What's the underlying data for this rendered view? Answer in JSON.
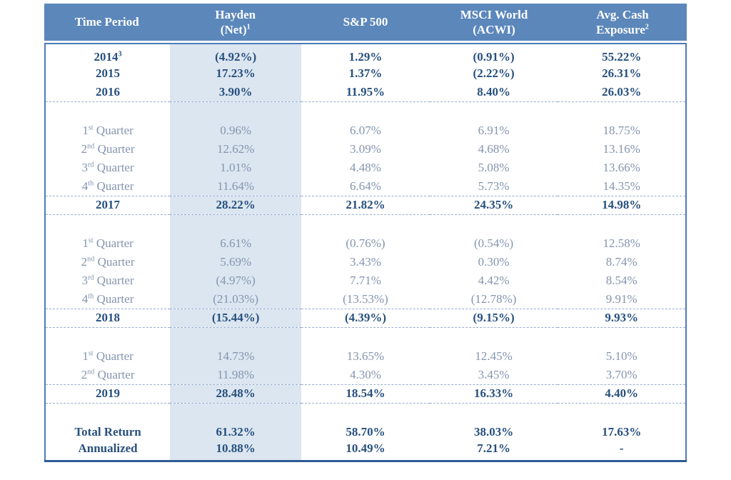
{
  "colors": {
    "header_bg": "#5B87BB",
    "header_text": "#FFFFFF",
    "strong_text": "#27507E",
    "muted_text": "#8495AF",
    "highlight_column_bg": "#DCE6F1",
    "outer_border": "#4B7CB8",
    "bottom_border": "#2F5B97",
    "dashed_rule": "#97AFCE"
  },
  "header": {
    "columns": [
      {
        "lines": [
          "Time Period"
        ],
        "sup": ""
      },
      {
        "lines": [
          "Hayden",
          "(Net)"
        ],
        "sup": "1"
      },
      {
        "lines": [
          "S&P 500"
        ],
        "sup": ""
      },
      {
        "lines": [
          "MSCI World",
          "(ACWI)"
        ],
        "sup": ""
      },
      {
        "lines": [
          "Avg. Cash",
          "Exposure"
        ],
        "sup": "2"
      }
    ]
  },
  "rows": [
    {
      "type": "year",
      "period": {
        "text": "2014",
        "sup": "3",
        "rest": ""
      },
      "values": [
        "(4.92%)",
        "1.29%",
        "(0.91%)",
        "55.22%"
      ],
      "dashed": false
    },
    {
      "type": "year",
      "period": {
        "text": "2015",
        "sup": "",
        "rest": ""
      },
      "values": [
        "17.23%",
        "1.37%",
        "(2.22%)",
        "26.31%"
      ],
      "dashed": false
    },
    {
      "type": "year",
      "period": {
        "text": "2016",
        "sup": "",
        "rest": ""
      },
      "values": [
        "3.90%",
        "11.95%",
        "8.40%",
        "26.03%"
      ],
      "dashed": true
    },
    {
      "type": "gap"
    },
    {
      "type": "quarter",
      "period": {
        "text": "1",
        "sup": "st",
        "rest": " Quarter"
      },
      "values": [
        "0.96%",
        "6.07%",
        "6.91%",
        "18.75%"
      ],
      "dashed": false
    },
    {
      "type": "quarter",
      "period": {
        "text": "2",
        "sup": "nd",
        "rest": " Quarter"
      },
      "values": [
        "12.62%",
        "3.09%",
        "4.68%",
        "13.16%"
      ],
      "dashed": false
    },
    {
      "type": "quarter",
      "period": {
        "text": "3",
        "sup": "rd",
        "rest": " Quarter"
      },
      "values": [
        "1.01%",
        "4.48%",
        "5.08%",
        "13.66%"
      ],
      "dashed": false
    },
    {
      "type": "quarter",
      "period": {
        "text": "4",
        "sup": "th",
        "rest": " Quarter"
      },
      "values": [
        "11.64%",
        "6.64%",
        "5.73%",
        "14.35%"
      ],
      "dashed": true
    },
    {
      "type": "year",
      "period": {
        "text": "2017",
        "sup": "",
        "rest": ""
      },
      "values": [
        "28.22%",
        "21.82%",
        "24.35%",
        "14.98%"
      ],
      "dashed": true
    },
    {
      "type": "gap"
    },
    {
      "type": "quarter",
      "period": {
        "text": "1",
        "sup": "st",
        "rest": " Quarter"
      },
      "values": [
        "6.61%",
        "(0.76%)",
        "(0.54%)",
        "12.58%"
      ],
      "dashed": false
    },
    {
      "type": "quarter",
      "period": {
        "text": "2",
        "sup": "nd",
        "rest": " Quarter"
      },
      "values": [
        "5.69%",
        "3.43%",
        "0.30%",
        "8.74%"
      ],
      "dashed": false
    },
    {
      "type": "quarter",
      "period": {
        "text": "3",
        "sup": "rd",
        "rest": " Quarter"
      },
      "values": [
        "(4.97%)",
        "7.71%",
        "4.42%",
        "8.54%"
      ],
      "dashed": false
    },
    {
      "type": "quarter",
      "period": {
        "text": "4",
        "sup": "th",
        "rest": " Quarter"
      },
      "values": [
        "(21.03%)",
        "(13.53%)",
        "(12.78%)",
        "9.91%"
      ],
      "dashed": true
    },
    {
      "type": "year",
      "period": {
        "text": "2018",
        "sup": "",
        "rest": ""
      },
      "values": [
        "(15.44%)",
        "(4.39%)",
        "(9.15%)",
        "9.93%"
      ],
      "dashed": true
    },
    {
      "type": "gap"
    },
    {
      "type": "quarter",
      "period": {
        "text": "1",
        "sup": "st",
        "rest": " Quarter"
      },
      "values": [
        "14.73%",
        "13.65%",
        "12.45%",
        "5.10%"
      ],
      "dashed": false
    },
    {
      "type": "quarter",
      "period": {
        "text": "2",
        "sup": "nd",
        "rest": " Quarter"
      },
      "values": [
        "11.98%",
        "4.30%",
        "3.45%",
        "3.70%"
      ],
      "dashed": true
    },
    {
      "type": "year",
      "period": {
        "text": "2019",
        "sup": "",
        "rest": ""
      },
      "values": [
        "28.48%",
        "18.54%",
        "16.33%",
        "4.40%"
      ],
      "dashed": true
    },
    {
      "type": "gap"
    },
    {
      "type": "total",
      "period": {
        "text": "Total Return",
        "sup": "",
        "rest": ""
      },
      "values": [
        "61.32%",
        "58.70%",
        "38.03%",
        "17.63%"
      ],
      "dashed": false
    },
    {
      "type": "total",
      "period": {
        "text": "Annualized",
        "sup": "",
        "rest": ""
      },
      "values": [
        "10.88%",
        "10.49%",
        "7.21%",
        "-"
      ],
      "dashed": false
    }
  ],
  "chart_data": {
    "type": "table",
    "title": "",
    "columns": [
      "Time Period",
      "Hayden (Net)1",
      "S&P 500",
      "MSCI World (ACWI)",
      "Avg. Cash Exposure2"
    ],
    "rows": [
      [
        "2014(3)",
        "(4.92%)",
        "1.29%",
        "(0.91%)",
        "55.22%"
      ],
      [
        "2015",
        "17.23%",
        "1.37%",
        "(2.22%)",
        "26.31%"
      ],
      [
        "2016",
        "3.90%",
        "11.95%",
        "8.40%",
        "26.03%"
      ],
      [
        "1st Quarter",
        "0.96%",
        "6.07%",
        "6.91%",
        "18.75%"
      ],
      [
        "2nd Quarter",
        "12.62%",
        "3.09%",
        "4.68%",
        "13.16%"
      ],
      [
        "3rd Quarter",
        "1.01%",
        "4.48%",
        "5.08%",
        "13.66%"
      ],
      [
        "4th Quarter",
        "11.64%",
        "6.64%",
        "5.73%",
        "14.35%"
      ],
      [
        "2017",
        "28.22%",
        "21.82%",
        "24.35%",
        "14.98%"
      ],
      [
        "1st Quarter",
        "6.61%",
        "(0.76%)",
        "(0.54%)",
        "12.58%"
      ],
      [
        "2nd Quarter",
        "5.69%",
        "3.43%",
        "0.30%",
        "8.74%"
      ],
      [
        "3rd Quarter",
        "(4.97%)",
        "7.71%",
        "4.42%",
        "8.54%"
      ],
      [
        "4th Quarter",
        "(21.03%)",
        "(13.53%)",
        "(12.78%)",
        "9.91%"
      ],
      [
        "2018",
        "(15.44%)",
        "(4.39%)",
        "(9.15%)",
        "9.93%"
      ],
      [
        "1st Quarter",
        "14.73%",
        "13.65%",
        "12.45%",
        "5.10%"
      ],
      [
        "2nd Quarter",
        "11.98%",
        "4.30%",
        "3.45%",
        "3.70%"
      ],
      [
        "2019",
        "28.48%",
        "18.54%",
        "16.33%",
        "4.40%"
      ],
      [
        "Total Return",
        "61.32%",
        "58.70%",
        "38.03%",
        "17.63%"
      ],
      [
        "Annualized",
        "10.88%",
        "10.49%",
        "7.21%",
        "-"
      ]
    ],
    "layout_hints": {
      "highlighted_column": "Hayden (Net)",
      "grid": "dashed separators below section-total rows",
      "negative_values_in_parentheses": true
    }
  }
}
